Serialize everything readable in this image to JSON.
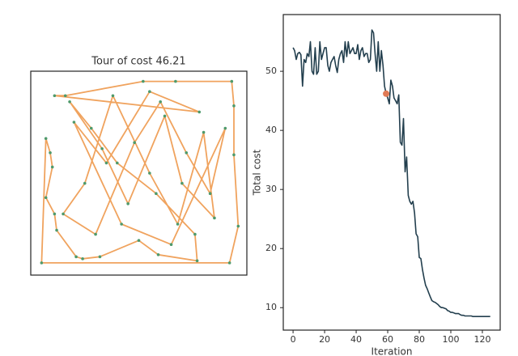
{
  "chart_data": [
    {
      "type": "line",
      "title": "Tour of cost 46.21",
      "closed": true,
      "color": "#f0a35e",
      "marker_color": "#4e9a6b",
      "xlim": [
        0,
        1
      ],
      "ylim": [
        0,
        1
      ],
      "x": [
        0.11,
        0.16,
        0.52,
        0.67,
        0.93,
        0.94,
        0.94,
        0.96,
        0.92,
        0.05,
        0.07,
        0.09,
        0.1,
        0.07,
        0.11,
        0.12,
        0.21,
        0.24,
        0.32,
        0.5,
        0.59,
        0.77,
        0.76,
        0.58,
        0.4,
        0.28,
        0.18,
        0.33,
        0.45,
        0.62,
        0.7,
        0.85,
        0.8,
        0.68,
        0.55,
        0.38,
        0.25,
        0.15,
        0.3,
        0.48,
        0.6,
        0.72,
        0.83,
        0.9,
        0.65,
        0.42,
        0.2,
        0.35,
        0.55,
        0.78
      ],
      "values": [
        0.88,
        0.88,
        0.95,
        0.95,
        0.95,
        0.83,
        0.59,
        0.24,
        0.06,
        0.06,
        0.67,
        0.6,
        0.53,
        0.38,
        0.3,
        0.22,
        0.09,
        0.08,
        0.09,
        0.17,
        0.1,
        0.07,
        0.2,
        0.4,
        0.55,
        0.72,
        0.85,
        0.62,
        0.35,
        0.78,
        0.45,
        0.28,
        0.7,
        0.25,
        0.5,
        0.88,
        0.45,
        0.3,
        0.2,
        0.65,
        0.85,
        0.6,
        0.4,
        0.72,
        0.15,
        0.25,
        0.75,
        0.55,
        0.9,
        0.8
      ]
    },
    {
      "type": "line",
      "x_label": "Iteration",
      "y_label": "Total cost",
      "color": "#233f4e",
      "xlim": [
        -6.2,
        131.3
      ],
      "ylim": [
        6.2,
        59.6
      ],
      "xticks": [
        0,
        20,
        40,
        60,
        80,
        100,
        120
      ],
      "yticks": [
        10,
        20,
        30,
        40,
        50
      ],
      "highlight": {
        "x": 59,
        "y": 46.21,
        "color": "#e07a55"
      },
      "x": [
        0,
        1,
        2,
        3,
        4,
        5,
        6,
        7,
        8,
        9,
        10,
        11,
        12,
        13,
        14,
        15,
        16,
        17,
        18,
        19,
        20,
        21,
        22,
        23,
        24,
        25,
        26,
        27,
        28,
        29,
        30,
        31,
        32,
        33,
        34,
        35,
        36,
        37,
        38,
        39,
        40,
        41,
        42,
        43,
        44,
        45,
        46,
        47,
        48,
        49,
        50,
        51,
        52,
        53,
        54,
        55,
        56,
        57,
        58,
        59,
        60,
        61,
        62,
        63,
        64,
        65,
        66,
        67,
        68,
        69,
        70,
        71,
        72,
        73,
        74,
        75,
        76,
        77,
        78,
        79,
        80,
        81,
        82,
        83,
        84,
        85,
        86,
        87,
        88,
        89,
        90,
        91,
        92,
        93,
        94,
        95,
        96,
        97,
        98,
        99,
        100,
        101,
        102,
        103,
        104,
        105,
        106,
        107,
        108,
        109,
        110,
        111,
        112,
        113,
        114,
        115,
        116,
        117,
        118,
        119,
        120,
        121,
        122,
        123,
        124,
        125
      ],
      "values": [
        54,
        53.5,
        52,
        53,
        53.2,
        52.8,
        47.5,
        52,
        51.5,
        53,
        52.5,
        55,
        50,
        49.5,
        54,
        49.5,
        50,
        55,
        52,
        53,
        54,
        54,
        51,
        50,
        51.5,
        52,
        52.5,
        51,
        49.8,
        52,
        53,
        53.5,
        51.5,
        55,
        52.5,
        55,
        53,
        53.5,
        54,
        53,
        53,
        54.5,
        52,
        53.5,
        54,
        52.5,
        53,
        53,
        51.5,
        52,
        57,
        56.5,
        53,
        50,
        55,
        50,
        53.5,
        51,
        47.5,
        46.21,
        45.5,
        44.5,
        48.5,
        47.5,
        45.5,
        45,
        44.5,
        46,
        38,
        37.5,
        42,
        33,
        35.5,
        29,
        28,
        27.5,
        28,
        26,
        22.5,
        22,
        18.5,
        18.3,
        16.5,
        15,
        13.8,
        13.2,
        12.5,
        11.8,
        11.2,
        11,
        10.9,
        10.7,
        10.5,
        10.2,
        10,
        10,
        9.9,
        9.8,
        9.5,
        9.4,
        9.2,
        9.2,
        9.1,
        9,
        9,
        9,
        8.8,
        8.7,
        8.7,
        8.6,
        8.6,
        8.6,
        8.6,
        8.6,
        8.5,
        8.5,
        8.5,
        8.5,
        8.5,
        8.5,
        8.5,
        8.5,
        8.5,
        8.5,
        8.5,
        8.5
      ]
    }
  ]
}
